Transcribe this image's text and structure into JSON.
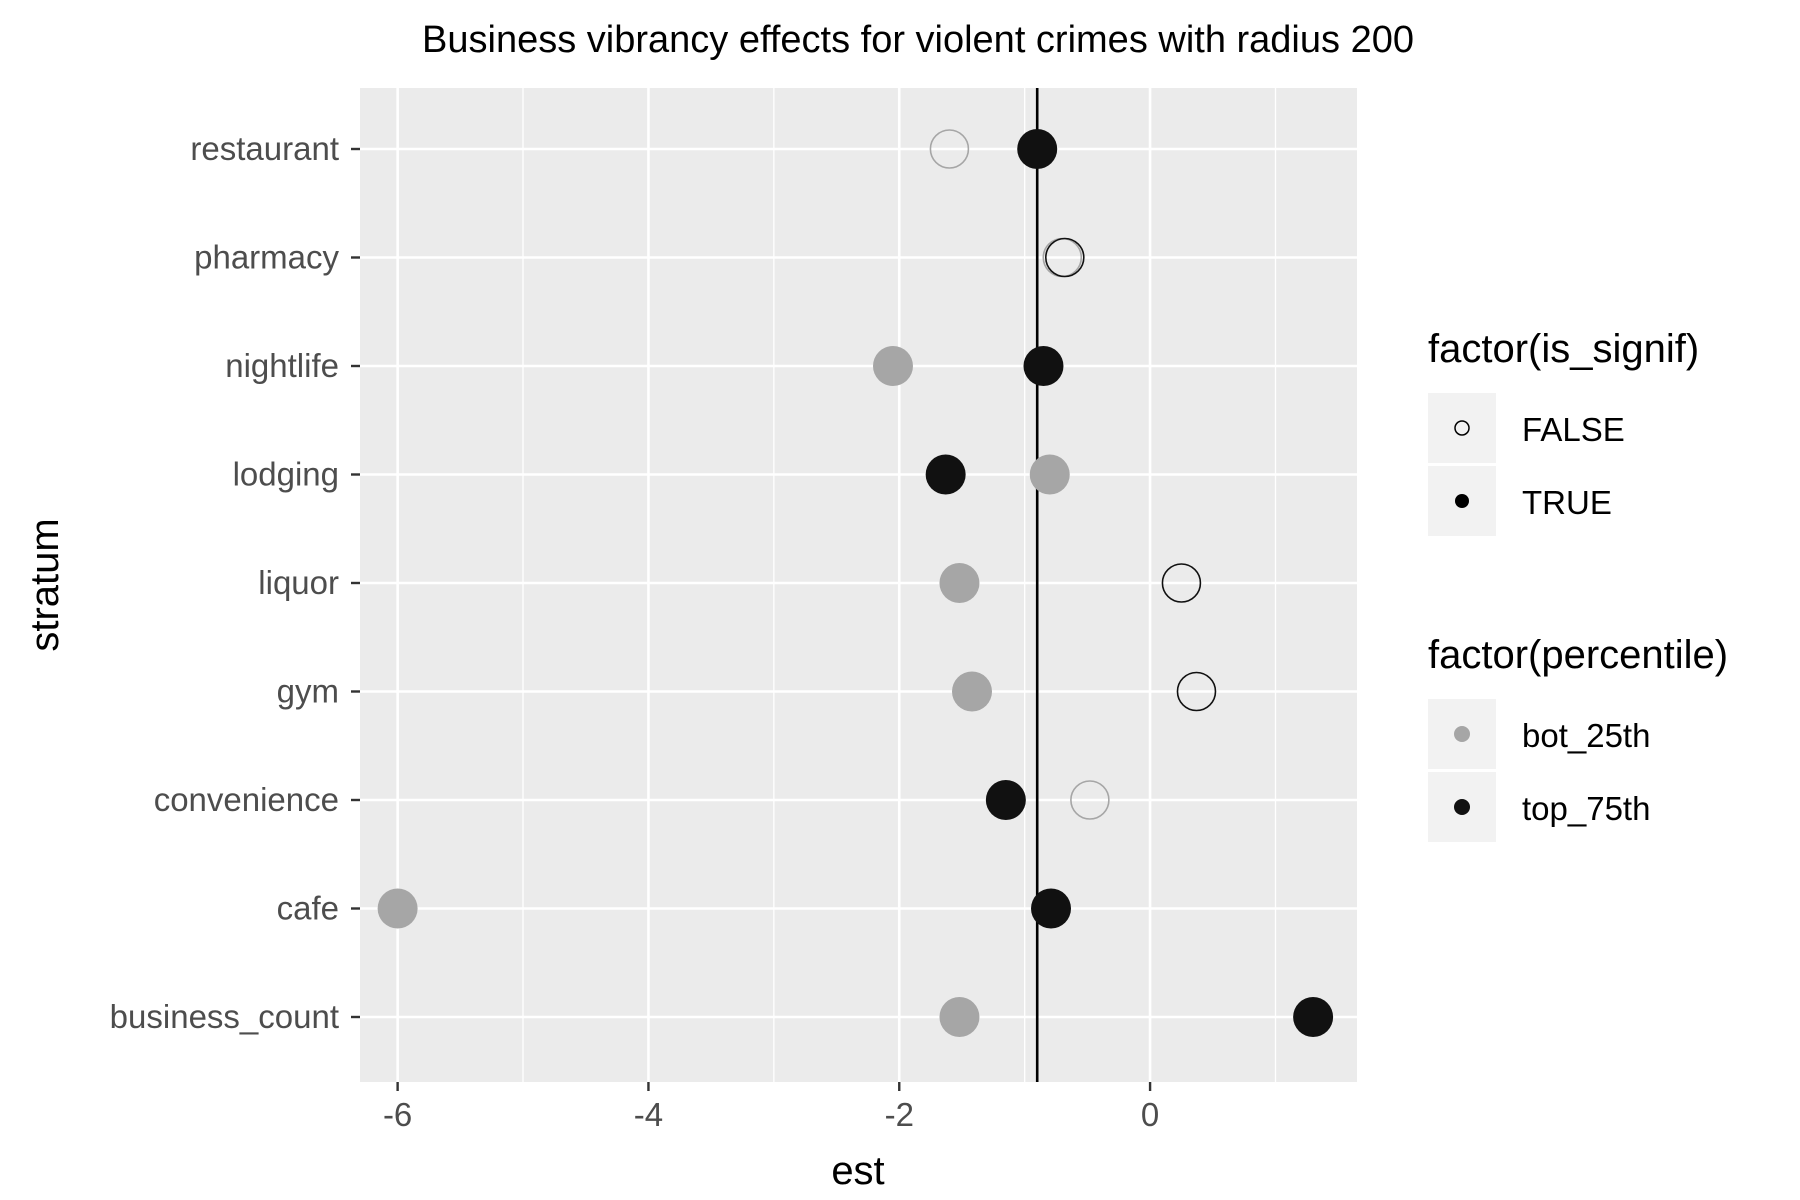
{
  "chart_data": {
    "type": "scatter",
    "title": "Business vibrancy effects for violent crimes with radius 200",
    "xlabel": "est",
    "ylabel": "stratum",
    "xlim": [
      -6.3,
      1.65
    ],
    "x_ticks": [
      -6,
      -4,
      -2,
      0
    ],
    "x_minor_ticks": [
      -5,
      -3,
      -1,
      1
    ],
    "categories": [
      "restaurant",
      "pharmacy",
      "nightlife",
      "lodging",
      "liquor",
      "gym",
      "convenience",
      "cafe",
      "business_count"
    ],
    "reference_line_x": -0.9,
    "grid": true,
    "background": "#ebebeb",
    "points": [
      {
        "stratum": "restaurant",
        "percentile": "bot_25th",
        "is_signif": "FALSE",
        "est": -1.6
      },
      {
        "stratum": "restaurant",
        "percentile": "top_75th",
        "is_signif": "TRUE",
        "est": -0.9
      },
      {
        "stratum": "pharmacy",
        "percentile": "bot_25th",
        "is_signif": "FALSE",
        "est": -0.7
      },
      {
        "stratum": "pharmacy",
        "percentile": "top_75th",
        "is_signif": "FALSE",
        "est": -0.68
      },
      {
        "stratum": "nightlife",
        "percentile": "bot_25th",
        "is_signif": "TRUE",
        "est": -2.05
      },
      {
        "stratum": "nightlife",
        "percentile": "top_75th",
        "is_signif": "TRUE",
        "est": -0.85
      },
      {
        "stratum": "lodging",
        "percentile": "top_75th",
        "is_signif": "TRUE",
        "est": -1.63
      },
      {
        "stratum": "lodging",
        "percentile": "bot_25th",
        "is_signif": "TRUE",
        "est": -0.8
      },
      {
        "stratum": "liquor",
        "percentile": "bot_25th",
        "is_signif": "TRUE",
        "est": -1.52
      },
      {
        "stratum": "liquor",
        "percentile": "top_75th",
        "is_signif": "FALSE",
        "est": 0.25
      },
      {
        "stratum": "gym",
        "percentile": "bot_25th",
        "is_signif": "TRUE",
        "est": -1.42
      },
      {
        "stratum": "gym",
        "percentile": "top_75th",
        "is_signif": "FALSE",
        "est": 0.37
      },
      {
        "stratum": "convenience",
        "percentile": "top_75th",
        "is_signif": "TRUE",
        "est": -1.15
      },
      {
        "stratum": "convenience",
        "percentile": "bot_25th",
        "is_signif": "FALSE",
        "est": -0.48
      },
      {
        "stratum": "cafe",
        "percentile": "bot_25th",
        "is_signif": "TRUE",
        "est": -6.0
      },
      {
        "stratum": "cafe",
        "percentile": "top_75th",
        "is_signif": "TRUE",
        "est": -0.79
      },
      {
        "stratum": "business_count",
        "percentile": "bot_25th",
        "is_signif": "TRUE",
        "est": -1.52
      },
      {
        "stratum": "business_count",
        "percentile": "top_75th",
        "is_signif": "TRUE",
        "est": 1.3
      }
    ],
    "legends": [
      {
        "title": "factor(is_signif)",
        "entries": [
          {
            "label": "FALSE",
            "style": "hollow"
          },
          {
            "label": "TRUE",
            "style": "filled"
          }
        ]
      },
      {
        "title": "factor(percentile)",
        "entries": [
          {
            "label": "bot_25th",
            "color": "#a6a6a6"
          },
          {
            "label": "top_75th",
            "color": "#111111"
          }
        ]
      }
    ],
    "colors": {
      "bot_25th": "#a6a6a6",
      "top_75th": "#111111",
      "panel_background": "#ebebeb",
      "grid": "#ffffff",
      "reference_line": "#000000"
    }
  }
}
